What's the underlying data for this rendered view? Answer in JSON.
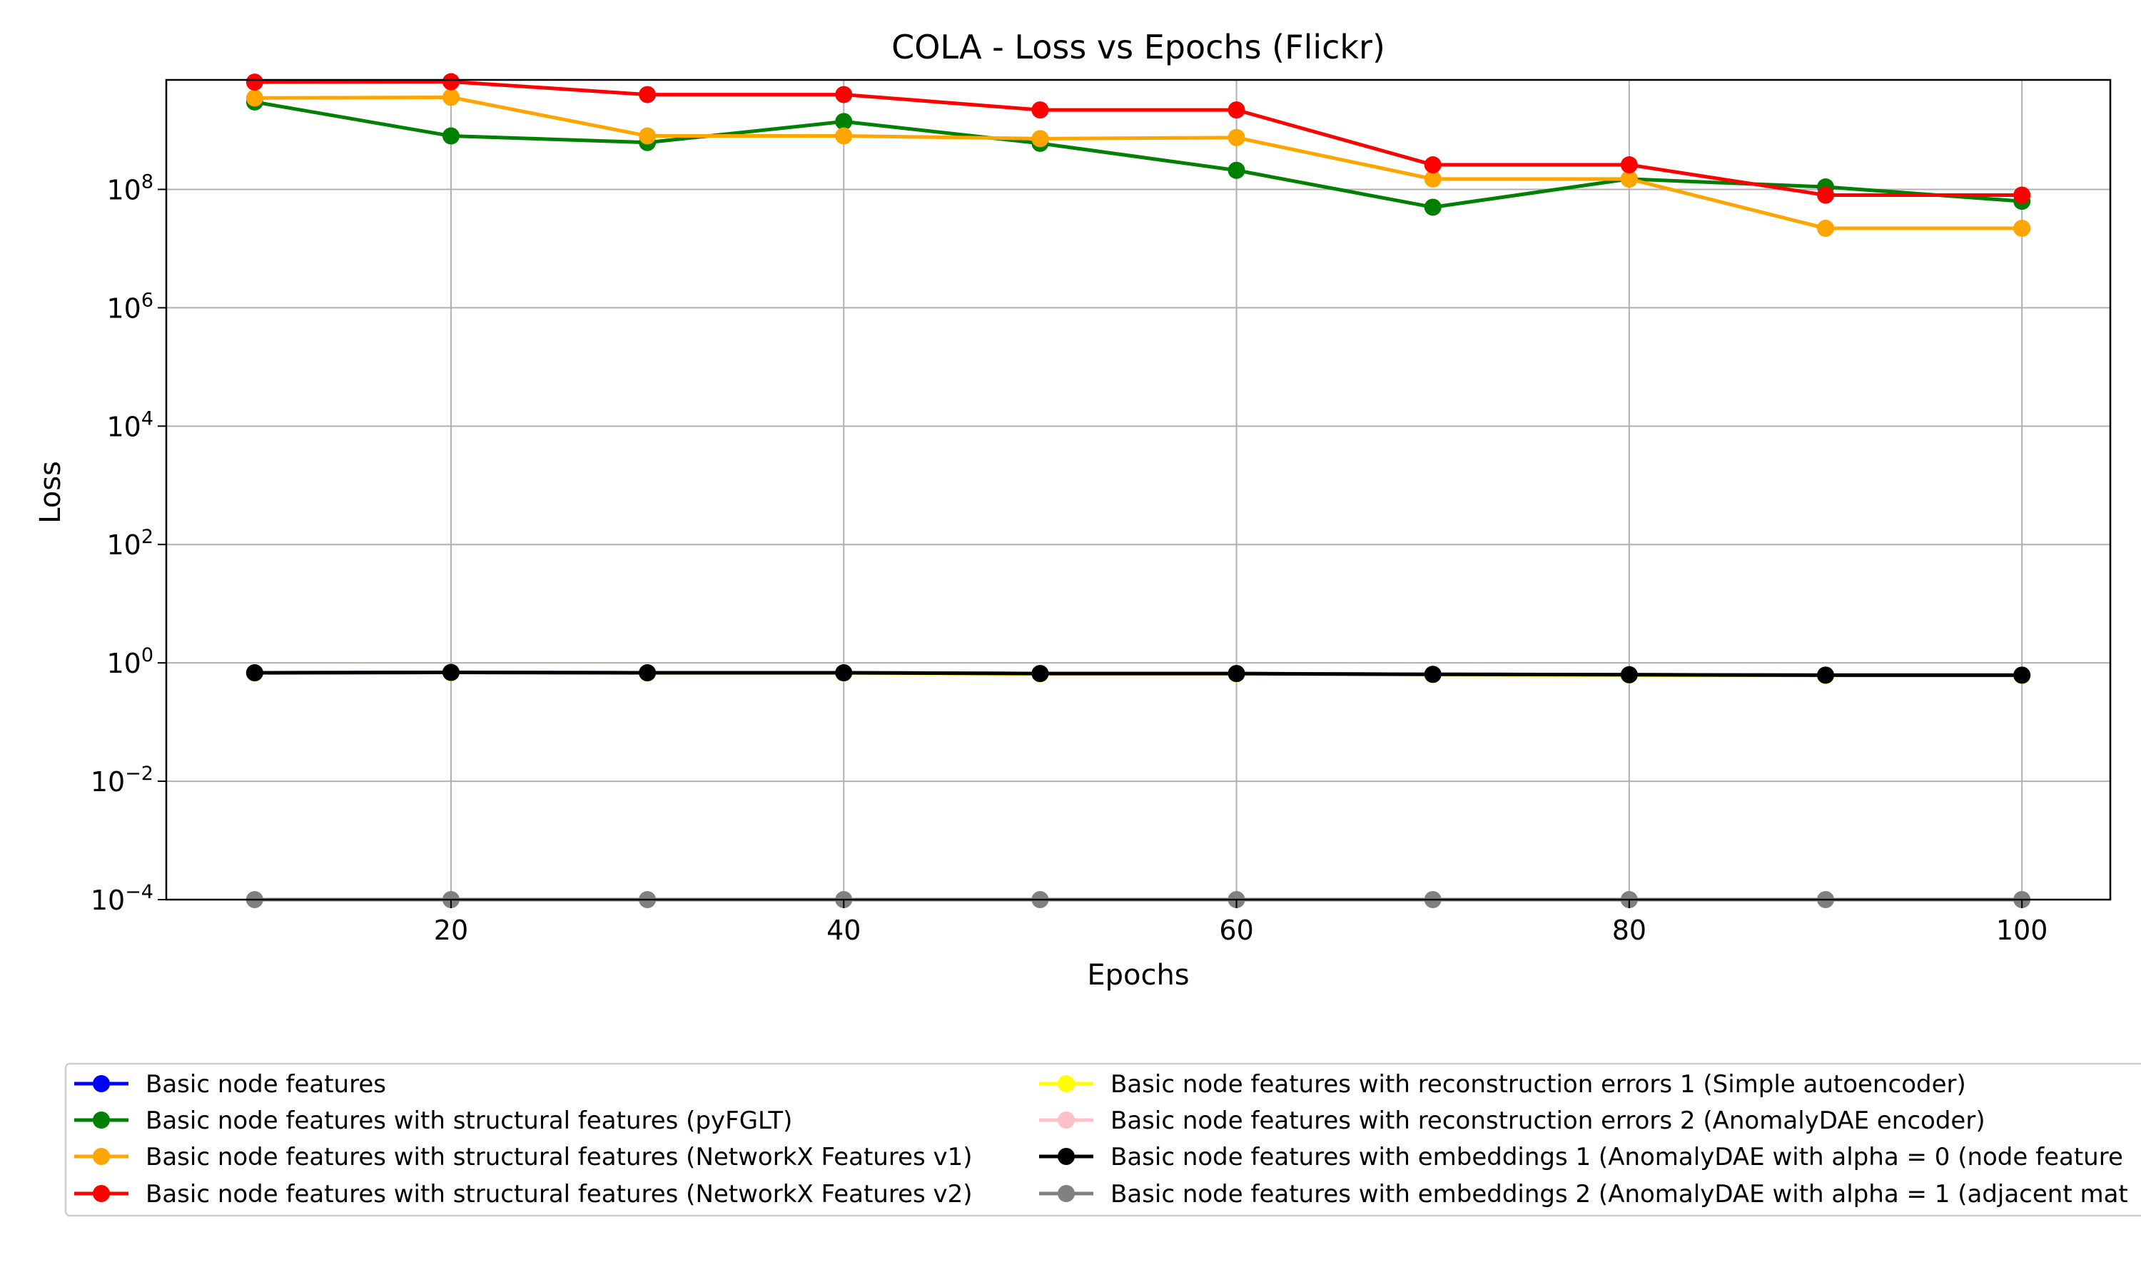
{
  "chart_data": {
    "type": "line",
    "title": "COLA - Loss vs Epochs (Flickr)",
    "xlabel": "Epochs",
    "ylabel": "Loss",
    "x": [
      10,
      20,
      30,
      40,
      50,
      60,
      70,
      80,
      90,
      100
    ],
    "xlim": [
      5.5,
      104.5
    ],
    "xticks": [
      20,
      40,
      60,
      80,
      100
    ],
    "xtick_labels": [
      "20",
      "40",
      "60",
      "80",
      "100"
    ],
    "yscale": "log",
    "ylim_exp": [
      -4,
      9.85
    ],
    "ytick_exps": [
      -4,
      -2,
      0,
      2,
      4,
      6,
      8
    ],
    "ytick_base": "10",
    "ytick_exponents": [
      "−4",
      "−2",
      "0",
      "2",
      "4",
      "6",
      "8"
    ],
    "grid": true,
    "legend_position": "bottom",
    "legend_columns": 2,
    "series": [
      {
        "name": "Basic node features",
        "color": "#0000ff",
        "values": [
          0.68,
          0.69,
          0.68,
          0.68,
          0.66,
          0.66,
          0.64,
          0.63,
          0.62,
          0.62
        ]
      },
      {
        "name": "Basic node features with structural features (pyFGLT)",
        "color": "#008000",
        "values": [
          3000000000.0,
          800000000.0,
          620000000.0,
          1400000000.0,
          600000000.0,
          210000000.0,
          50000000.0,
          150000000.0,
          110000000.0,
          63000000.0
        ]
      },
      {
        "name": "Basic node features with structural features (NetworkX Features v1)",
        "color": "#ffa500",
        "values": [
          3500000000.0,
          3600000000.0,
          800000000.0,
          800000000.0,
          720000000.0,
          750000000.0,
          150000000.0,
          150000000.0,
          22000000.0,
          22000000.0
        ]
      },
      {
        "name": "Basic node features with structural features (NetworkX Features v2)",
        "color": "#ff0000",
        "values": [
          6500000000.0,
          6600000000.0,
          4000000000.0,
          4000000000.0,
          2200000000.0,
          2200000000.0,
          260000000.0,
          260000000.0,
          80000000.0,
          80000000.0
        ]
      },
      {
        "name": "Basic node features with reconstruction errors 1 (Simple autoencoder)",
        "color": "#ffff00",
        "values": [
          0.67,
          0.68,
          0.67,
          0.67,
          0.65,
          0.65,
          0.63,
          0.62,
          0.61,
          0.61
        ]
      },
      {
        "name": "Basic node features with reconstruction errors 2 (AnomalyDAE encoder)",
        "color": "#ffc0cb",
        "values": [
          0.68,
          0.69,
          0.68,
          0.68,
          0.66,
          0.66,
          0.64,
          0.63,
          0.62,
          0.62
        ]
      },
      {
        "name": "Basic node features with embeddings 1 (AnomalyDAE with alpha = 0 (node feature",
        "color": "#000000",
        "values": [
          0.68,
          0.69,
          0.68,
          0.68,
          0.66,
          0.66,
          0.64,
          0.63,
          0.62,
          0.62
        ]
      },
      {
        "name": "Basic node features with embeddings 2 (AnomalyDAE with alpha = 1 (adjacent mat",
        "color": "#808080",
        "values": [
          0.0001,
          0.0001,
          0.0001,
          0.0001,
          0.0001,
          0.0001,
          0.0001,
          0.0001,
          0.0001,
          0.0001
        ]
      }
    ]
  }
}
